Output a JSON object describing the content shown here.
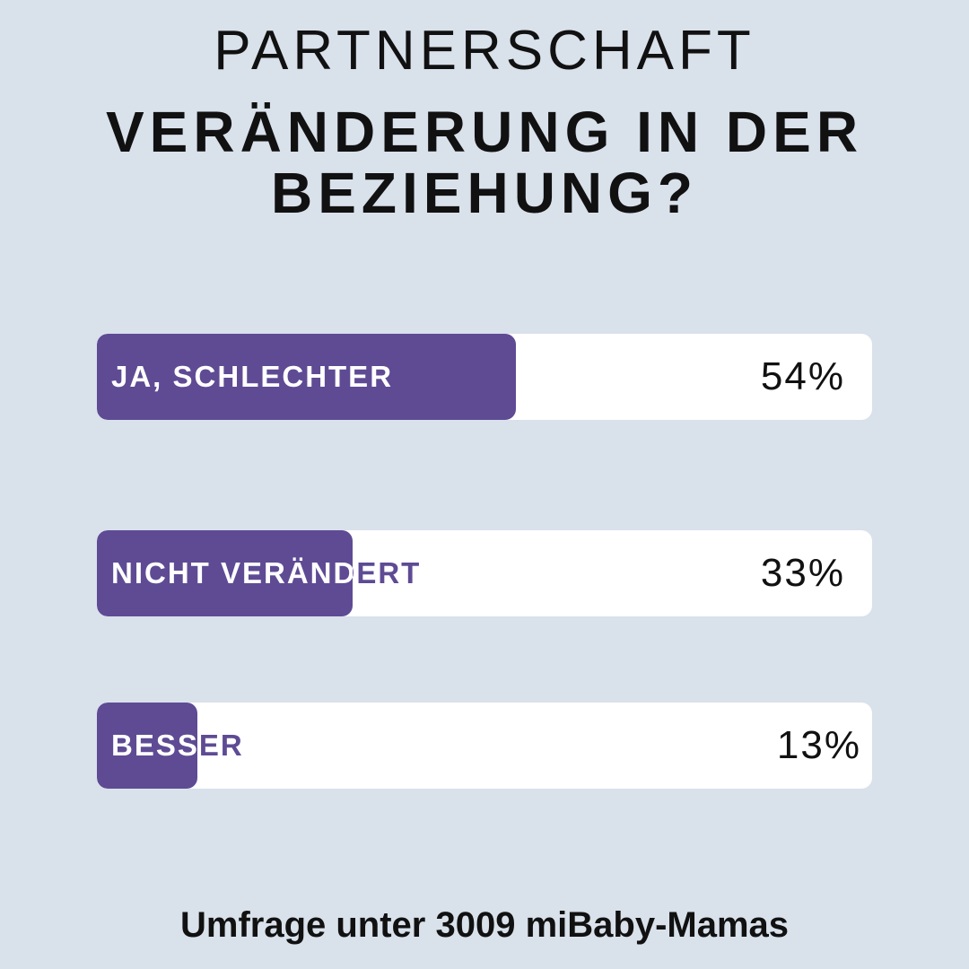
{
  "header": {
    "kicker": "PARTNERSCHAFT",
    "title_line1": "VERÄNDERUNG IN DER",
    "title_line2": "BEZIEHUNG?"
  },
  "colors": {
    "background": "#d9e1eb",
    "bar_fill": "#5e4b94",
    "bar_track": "#ffffff",
    "text": "#111111"
  },
  "chart_data": {
    "type": "bar",
    "orientation": "horizontal",
    "title": "VERÄNDERUNG IN DER BEZIEHUNG?",
    "categories": [
      "JA, SCHLECHTER",
      "NICHT VERÄNDERT",
      "BESSER"
    ],
    "values": [
      54,
      33,
      13
    ],
    "value_labels": [
      "54%",
      "33%",
      "13%"
    ],
    "unit": "%",
    "ylim": [
      0,
      100
    ],
    "grid": false
  },
  "footer": {
    "note": "Umfrage unter 3009 miBaby-Mamas"
  }
}
